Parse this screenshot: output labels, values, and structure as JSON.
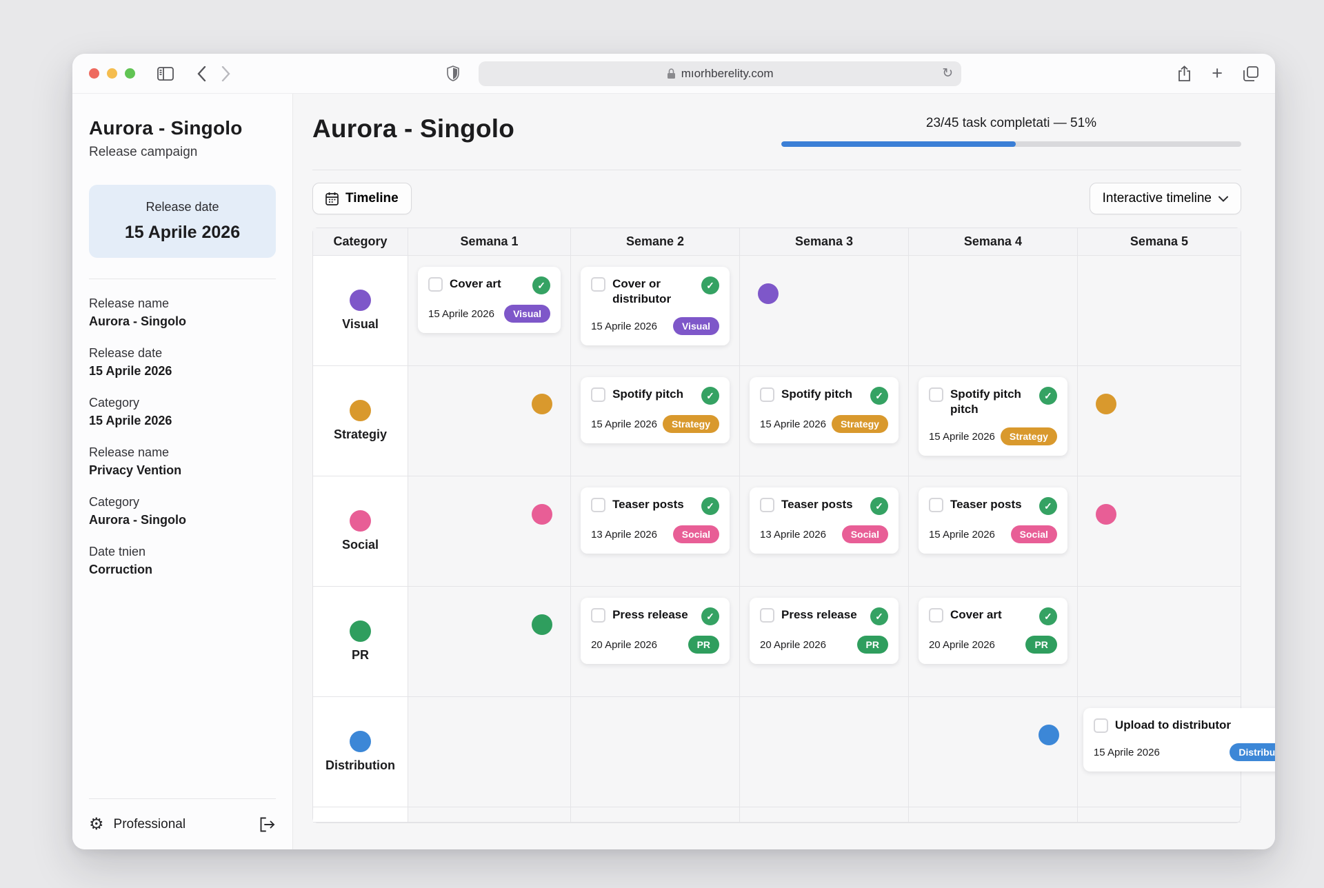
{
  "browser": {
    "url": "mıorhberelity.com",
    "traffic_lights": {
      "close": "#ee6a5f",
      "minimize": "#f5bd4f",
      "zoom": "#61c454"
    }
  },
  "sidebar": {
    "title": "Aurora - Singolo",
    "subtitle": "Release campaign",
    "date_box": {
      "label": "Release date",
      "value": "15 Aprile 2026"
    },
    "details": [
      {
        "label": "Release name",
        "value": "Aurora - Singolo"
      },
      {
        "label": "Release date",
        "value": "15 Aprile 2026"
      },
      {
        "label": "Category",
        "value": "15 Aprile 2026"
      },
      {
        "label": "Release name",
        "value": "Privacy Vention"
      },
      {
        "label": "Category",
        "value": "Aurora - Singolo"
      },
      {
        "label": "Date tnien",
        "value": "Corruction"
      }
    ],
    "footer": {
      "plan": "Professional"
    }
  },
  "header": {
    "title": "Aurora - Singolo",
    "progress_text": "23/45 task completati — 51%",
    "progress_percent": 51,
    "progress_color": "#3b7fd6"
  },
  "toolbar": {
    "view_button": "Timeline",
    "mode_dropdown": "Interactive timeline"
  },
  "timeline": {
    "columns": [
      "Category",
      "Semana 1",
      "Semane 2",
      "Semana 3",
      "Semana 4",
      "Semana 5"
    ],
    "check_color": "#35a263",
    "rows": [
      {
        "category": "Visual",
        "color": "#7e57c9",
        "cells": {
          "1": {
            "type": "card",
            "title": "Cover art",
            "date": "15 Aprile 2026",
            "badge": "Visual",
            "checked": true
          },
          "2": {
            "type": "card",
            "title": "Cover or distributor",
            "date": "15 Aprile 2026",
            "badge": "Visual",
            "checked": true
          },
          "3": {
            "type": "dot",
            "side": "left"
          }
        }
      },
      {
        "category": "Strategiy",
        "color": "#d9992d",
        "cells": {
          "1": {
            "type": "dot",
            "side": "right"
          },
          "2": {
            "type": "card",
            "title": "Spotify pitch",
            "date": "15 Aprile 2026",
            "badge": "Strategy",
            "checked": true
          },
          "3": {
            "type": "card",
            "title": "Spotify pitch",
            "date": "15 Aprile 2026",
            "badge": "Strategy",
            "checked": true
          },
          "4": {
            "type": "card",
            "title": "Spotify pitch pitch",
            "date": "15 Aprile 2026",
            "badge": "Strategy",
            "checked": true
          },
          "5": {
            "type": "dot",
            "side": "left"
          }
        }
      },
      {
        "category": "Social",
        "color": "#e85e96",
        "cells": {
          "1": {
            "type": "dot",
            "side": "right"
          },
          "2": {
            "type": "card",
            "title": "Teaser posts",
            "date": "13 Aprile 2026",
            "badge": "Social",
            "checked": true
          },
          "3": {
            "type": "card",
            "title": "Teaser posts",
            "date": "13 Aprile 2026",
            "badge": "Social",
            "checked": true
          },
          "4": {
            "type": "card",
            "title": "Teaser posts",
            "date": "15 Aprile 2026",
            "badge": "Social",
            "checked": true
          },
          "5": {
            "type": "dot",
            "side": "left"
          }
        }
      },
      {
        "category": "PR",
        "color": "#2f9e5e",
        "cells": {
          "1": {
            "type": "dot",
            "side": "right"
          },
          "2": {
            "type": "card",
            "title": "Press release",
            "date": "20 Aprile 2026",
            "badge": "PR",
            "checked": true
          },
          "3": {
            "type": "card",
            "title": "Press release",
            "date": "20 Aprile 2026",
            "badge": "PR",
            "checked": true
          },
          "4": {
            "type": "card",
            "title": "Cover art",
            "date": "20 Aprile 2026",
            "badge": "PR",
            "checked": true
          }
        }
      },
      {
        "category": "Distribution",
        "color": "#3c87d7",
        "cells": {
          "4": {
            "type": "dot",
            "side": "right"
          },
          "5": {
            "type": "card",
            "title": "Upload to distributor",
            "date": "15 Aprile 2026",
            "badge": "Distribution",
            "checked": false,
            "overflow": true
          }
        }
      }
    ]
  }
}
